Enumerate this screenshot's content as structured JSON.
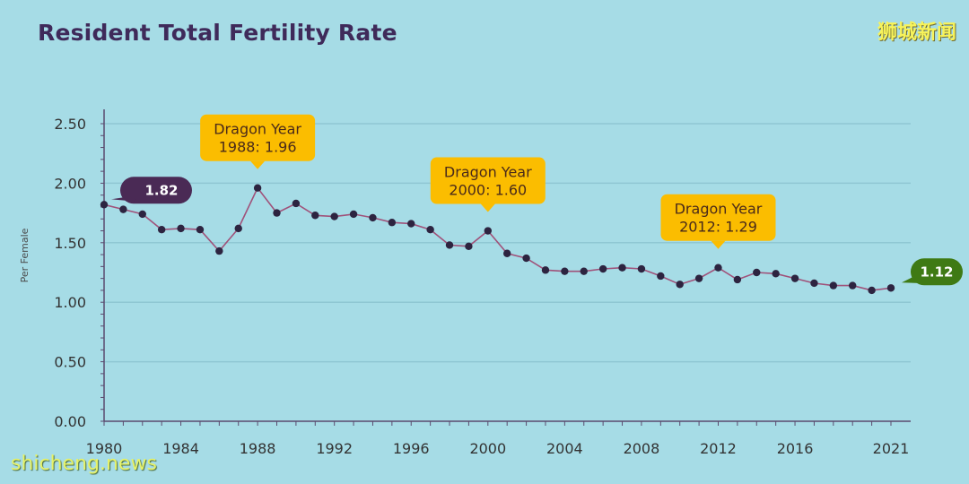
{
  "title": "Resident Total Fertility Rate",
  "logo_text": "狮城新闻",
  "watermark": "shicheng.news",
  "colors": {
    "background": "#a6dce6",
    "line": "#a0527a",
    "point": "#2d2440",
    "annotation_box": "#fbbd00",
    "start_bubble": "#4a2a55",
    "end_bubble": "#3f7a14",
    "grid": "#8fc7d3"
  },
  "chart_data": {
    "type": "line",
    "title": "Resident Total Fertility Rate",
    "ylabel": "Per Female",
    "xlabel": "",
    "ylim": [
      0,
      2.5
    ],
    "y_ticks": [
      "0.00",
      "0.50",
      "1.00",
      "1.50",
      "2.00",
      "2.50"
    ],
    "x_ticks": [
      "1980",
      "1984",
      "1988",
      "1992",
      "1996",
      "2000",
      "2004",
      "2008",
      "2012",
      "2016",
      "2021"
    ],
    "grid": true,
    "x": [
      1980,
      1981,
      1982,
      1983,
      1984,
      1985,
      1986,
      1987,
      1988,
      1989,
      1990,
      1991,
      1992,
      1993,
      1994,
      1995,
      1996,
      1997,
      1998,
      1999,
      2000,
      2001,
      2002,
      2003,
      2004,
      2005,
      2006,
      2007,
      2008,
      2009,
      2010,
      2011,
      2012,
      2013,
      2014,
      2015,
      2016,
      2017,
      2018,
      2019,
      2020,
      2021
    ],
    "series": [
      {
        "values": [
          1.82,
          1.78,
          1.74,
          1.61,
          1.62,
          1.61,
          1.43,
          1.62,
          1.96,
          1.75,
          1.83,
          1.73,
          1.72,
          1.74,
          1.71,
          1.67,
          1.66,
          1.61,
          1.48,
          1.47,
          1.6,
          1.41,
          1.37,
          1.27,
          1.26,
          1.26,
          1.28,
          1.29,
          1.28,
          1.22,
          1.15,
          1.2,
          1.29,
          1.19,
          1.25,
          1.24,
          1.2,
          1.16,
          1.14,
          1.14,
          1.1,
          1.12
        ]
      }
    ],
    "annotations": [
      {
        "line1": "Dragon Year",
        "line2": "1988: 1.96",
        "x": 1988,
        "y": 1.96
      },
      {
        "line1": "Dragon Year",
        "line2": "2000: 1.60",
        "x": 2000,
        "y": 1.6
      },
      {
        "line1": "Dragon Year",
        "line2": "2012: 1.29",
        "x": 2012,
        "y": 1.29
      }
    ],
    "start_label": "1.82",
    "end_label": "1.12"
  }
}
